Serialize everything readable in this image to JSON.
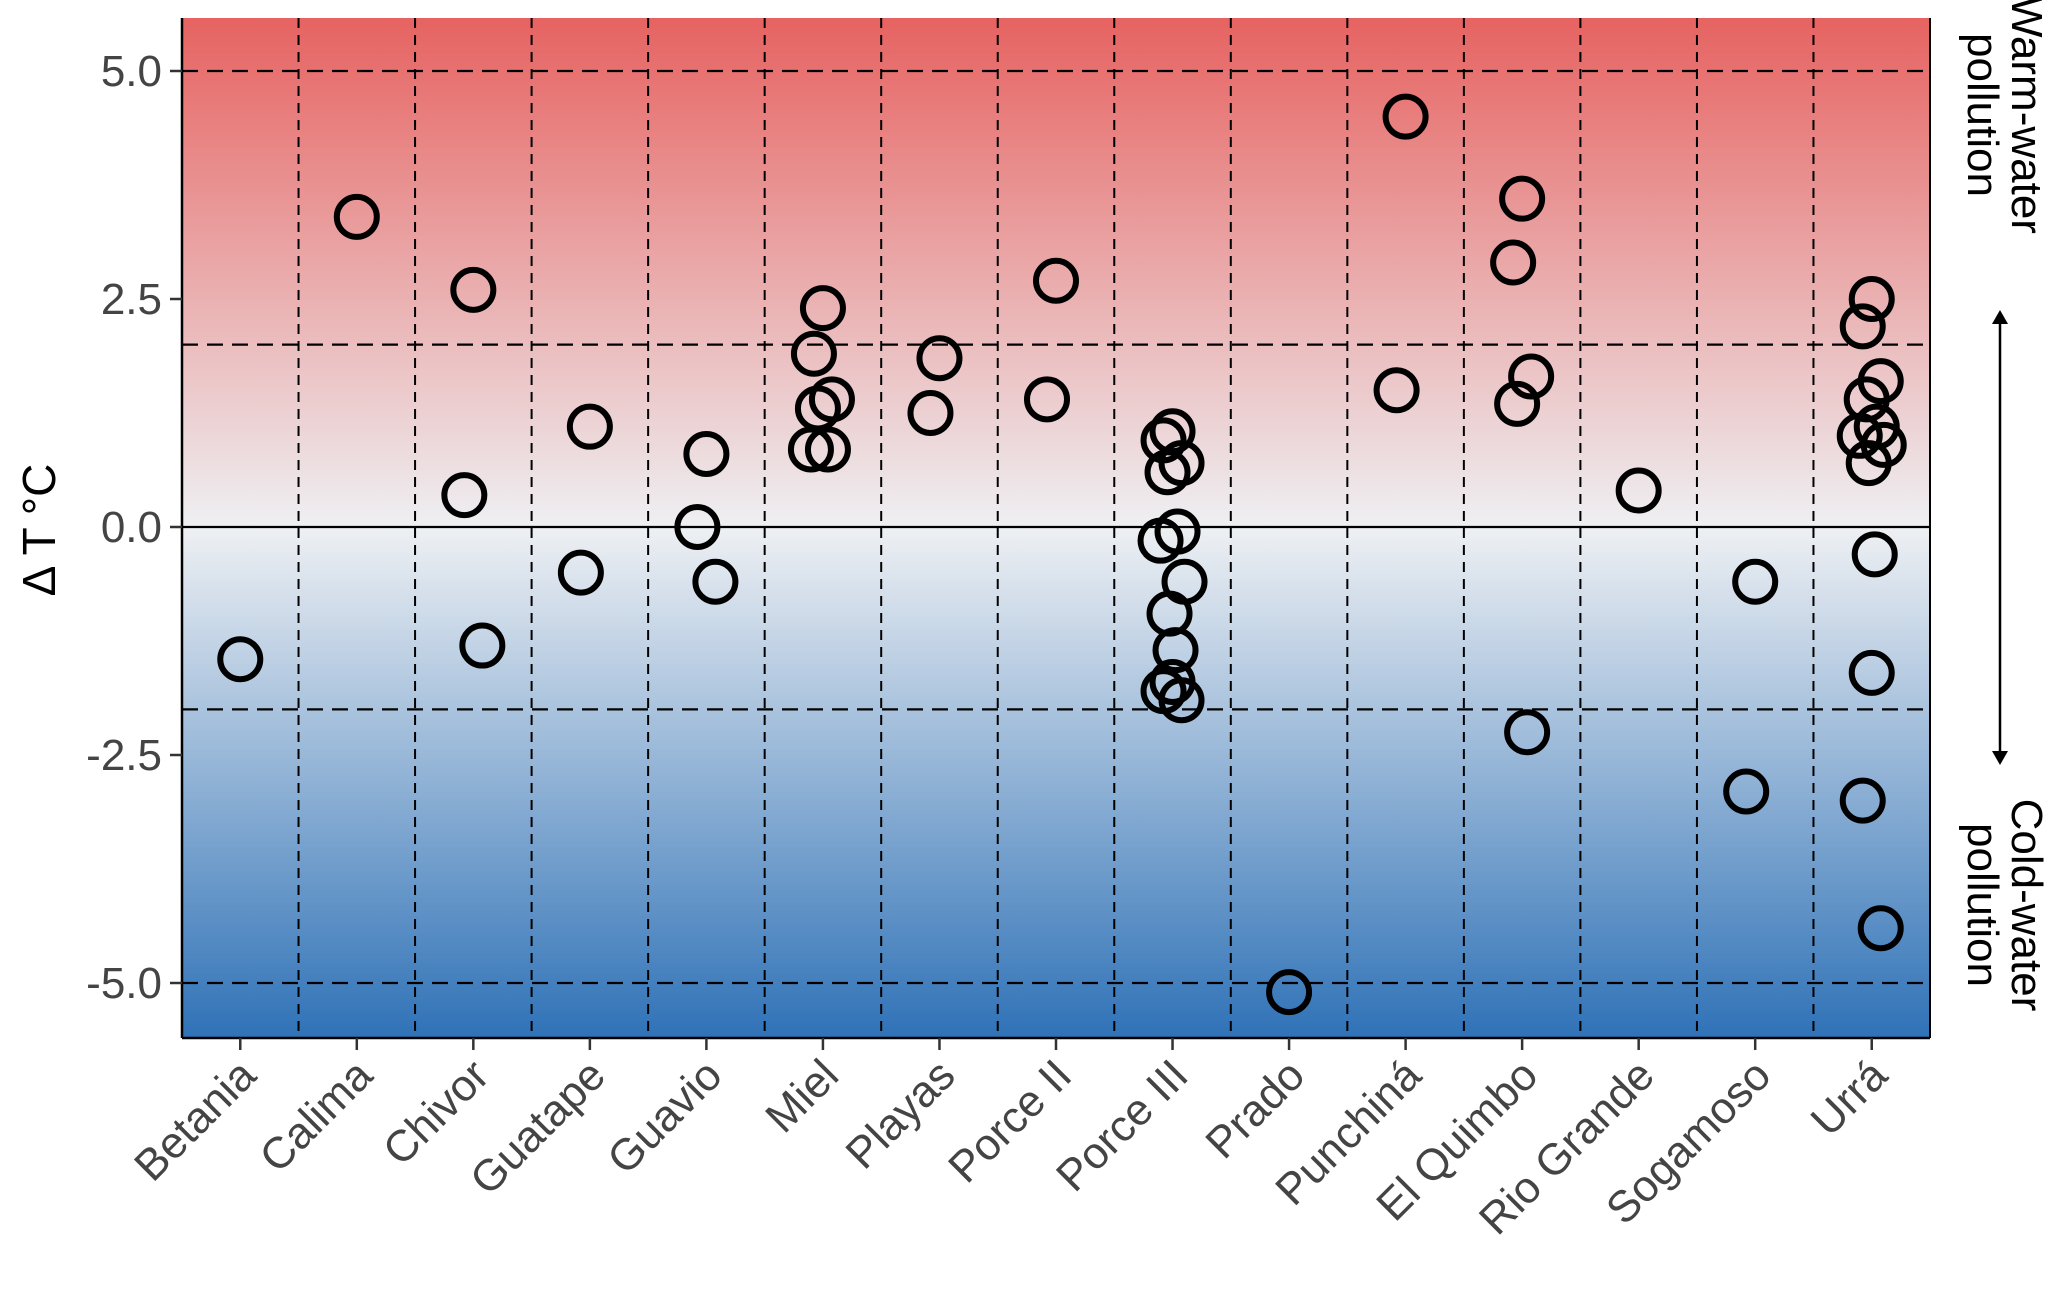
{
  "chart_data": {
    "type": "scatter",
    "ylabel": "Δ T °C",
    "xlabel": "",
    "title": "",
    "ylim": [
      -5.6,
      5.6
    ],
    "yticks": [
      "5.0",
      "2.5",
      "0.0",
      "-2.5",
      "-5.0"
    ],
    "ytick_values": [
      5.0,
      2.5,
      0.0,
      -2.5,
      -5.0
    ],
    "dashed_hlines": [
      5,
      2,
      -2,
      -5
    ],
    "solid_hline": 0,
    "grid": true,
    "background_gradient": {
      "top_color": "#e66361",
      "middle_color": "#eef0f3",
      "bottom_color": "#2f72b7"
    },
    "point_style": {
      "marker": "open-circle",
      "color": "#000000"
    },
    "annotations": {
      "top": "Warm-water pollution",
      "bottom": "Cold-water pollution",
      "arrow": "double-headed vertical arrow"
    },
    "categories": [
      "Betania",
      "Calima",
      "Chivor",
      "Guatape",
      "Guavio",
      "Miel",
      "Playas",
      "Porce II",
      "Porce III",
      "Prado",
      "Punchiná",
      "El Quimbo",
      "Rio Grande",
      "Sogamoso",
      "Urrá"
    ],
    "points": [
      {
        "category": "Betania",
        "values": [
          -1.45
        ]
      },
      {
        "category": "Calima",
        "values": [
          3.4
        ]
      },
      {
        "category": "Chivor",
        "values": [
          2.6,
          0.35,
          -1.3
        ]
      },
      {
        "category": "Guatape",
        "values": [
          1.1,
          -0.5
        ]
      },
      {
        "category": "Guavio",
        "values": [
          0.8,
          0.0,
          -0.6
        ]
      },
      {
        "category": "Miel",
        "values": [
          2.4,
          1.9,
          1.4,
          1.3,
          0.85,
          0.85
        ]
      },
      {
        "category": "Playas",
        "values": [
          1.85,
          1.25
        ]
      },
      {
        "category": "Porce II",
        "values": [
          2.7,
          1.4
        ]
      },
      {
        "category": "Porce III",
        "values": [
          1.05,
          0.95,
          0.7,
          0.6,
          -0.05,
          -0.15,
          -0.6,
          -0.95,
          -1.35,
          -1.7,
          -1.8,
          -1.9
        ]
      },
      {
        "category": "Prado",
        "values": [
          -5.1
        ]
      },
      {
        "category": "Punchiná",
        "values": [
          4.5,
          1.5
        ]
      },
      {
        "category": "El Quimbo",
        "values": [
          3.6,
          2.9,
          1.65,
          1.35,
          -2.25
        ]
      },
      {
        "category": "Rio Grande",
        "values": [
          0.4
        ]
      },
      {
        "category": "Sogamoso",
        "values": [
          -0.6,
          -2.9
        ]
      },
      {
        "category": "Urrá",
        "values": [
          2.5,
          2.2,
          1.6,
          1.4,
          1.1,
          1.0,
          0.9,
          0.7,
          -0.3,
          -1.6,
          -3.0,
          -4.4
        ]
      }
    ]
  }
}
